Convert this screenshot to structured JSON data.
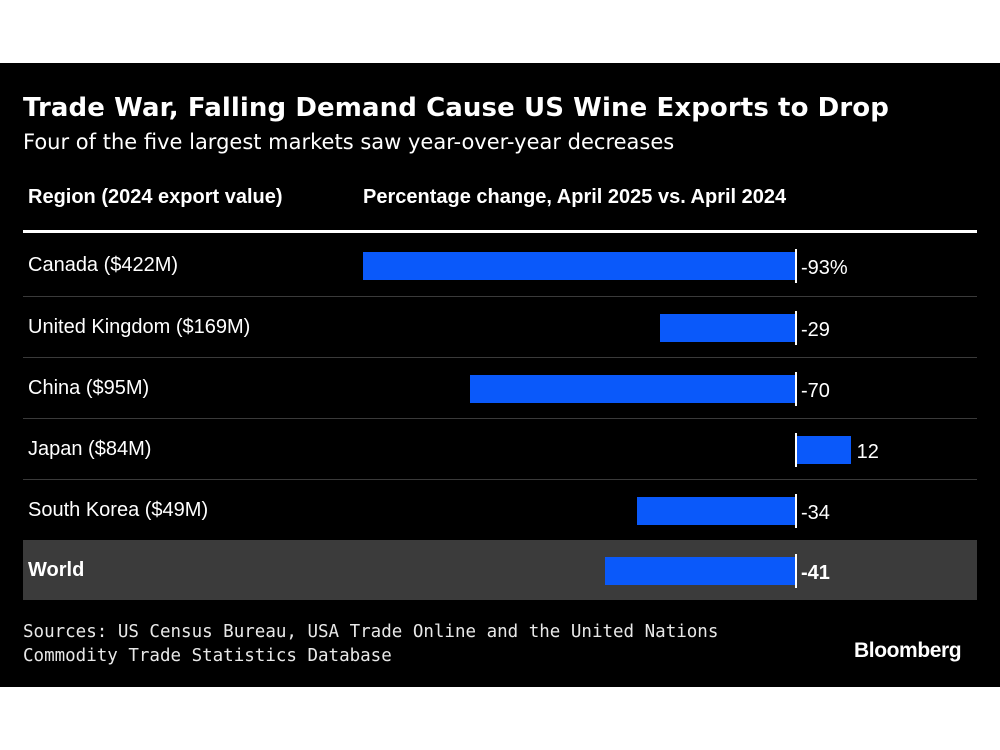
{
  "title": "Trade War, Falling Demand Cause US Wine Exports to Drop",
  "subtitle": "Four of the five largest markets saw year-over-year decreases",
  "columns": {
    "region": "Region (2024 export value)",
    "change": "Percentage change, April 2025 vs. April 2024"
  },
  "source": {
    "line1": "Sources: US Census Bureau, USA Trade Online and the United Nations",
    "line2": "Commodity Trade Statistics Database"
  },
  "brand": "Bloomberg",
  "colors": {
    "bar": "#0a59fa",
    "background": "#000000",
    "highlight_row": "#3b3b3b"
  },
  "chart_data": {
    "type": "bar",
    "orientation": "horizontal",
    "categories": [
      "Canada ($422M)",
      "United Kingdom ($169M)",
      "China ($95M)",
      "Japan ($84M)",
      "South Korea ($49M)",
      "World"
    ],
    "values": [
      -93,
      -29,
      -70,
      12,
      -34,
      -41
    ],
    "value_labels": [
      "-93%",
      "-29",
      "-70",
      "12",
      "-34",
      "-41"
    ],
    "highlighted": "World",
    "xlim": [
      -93,
      12
    ]
  }
}
